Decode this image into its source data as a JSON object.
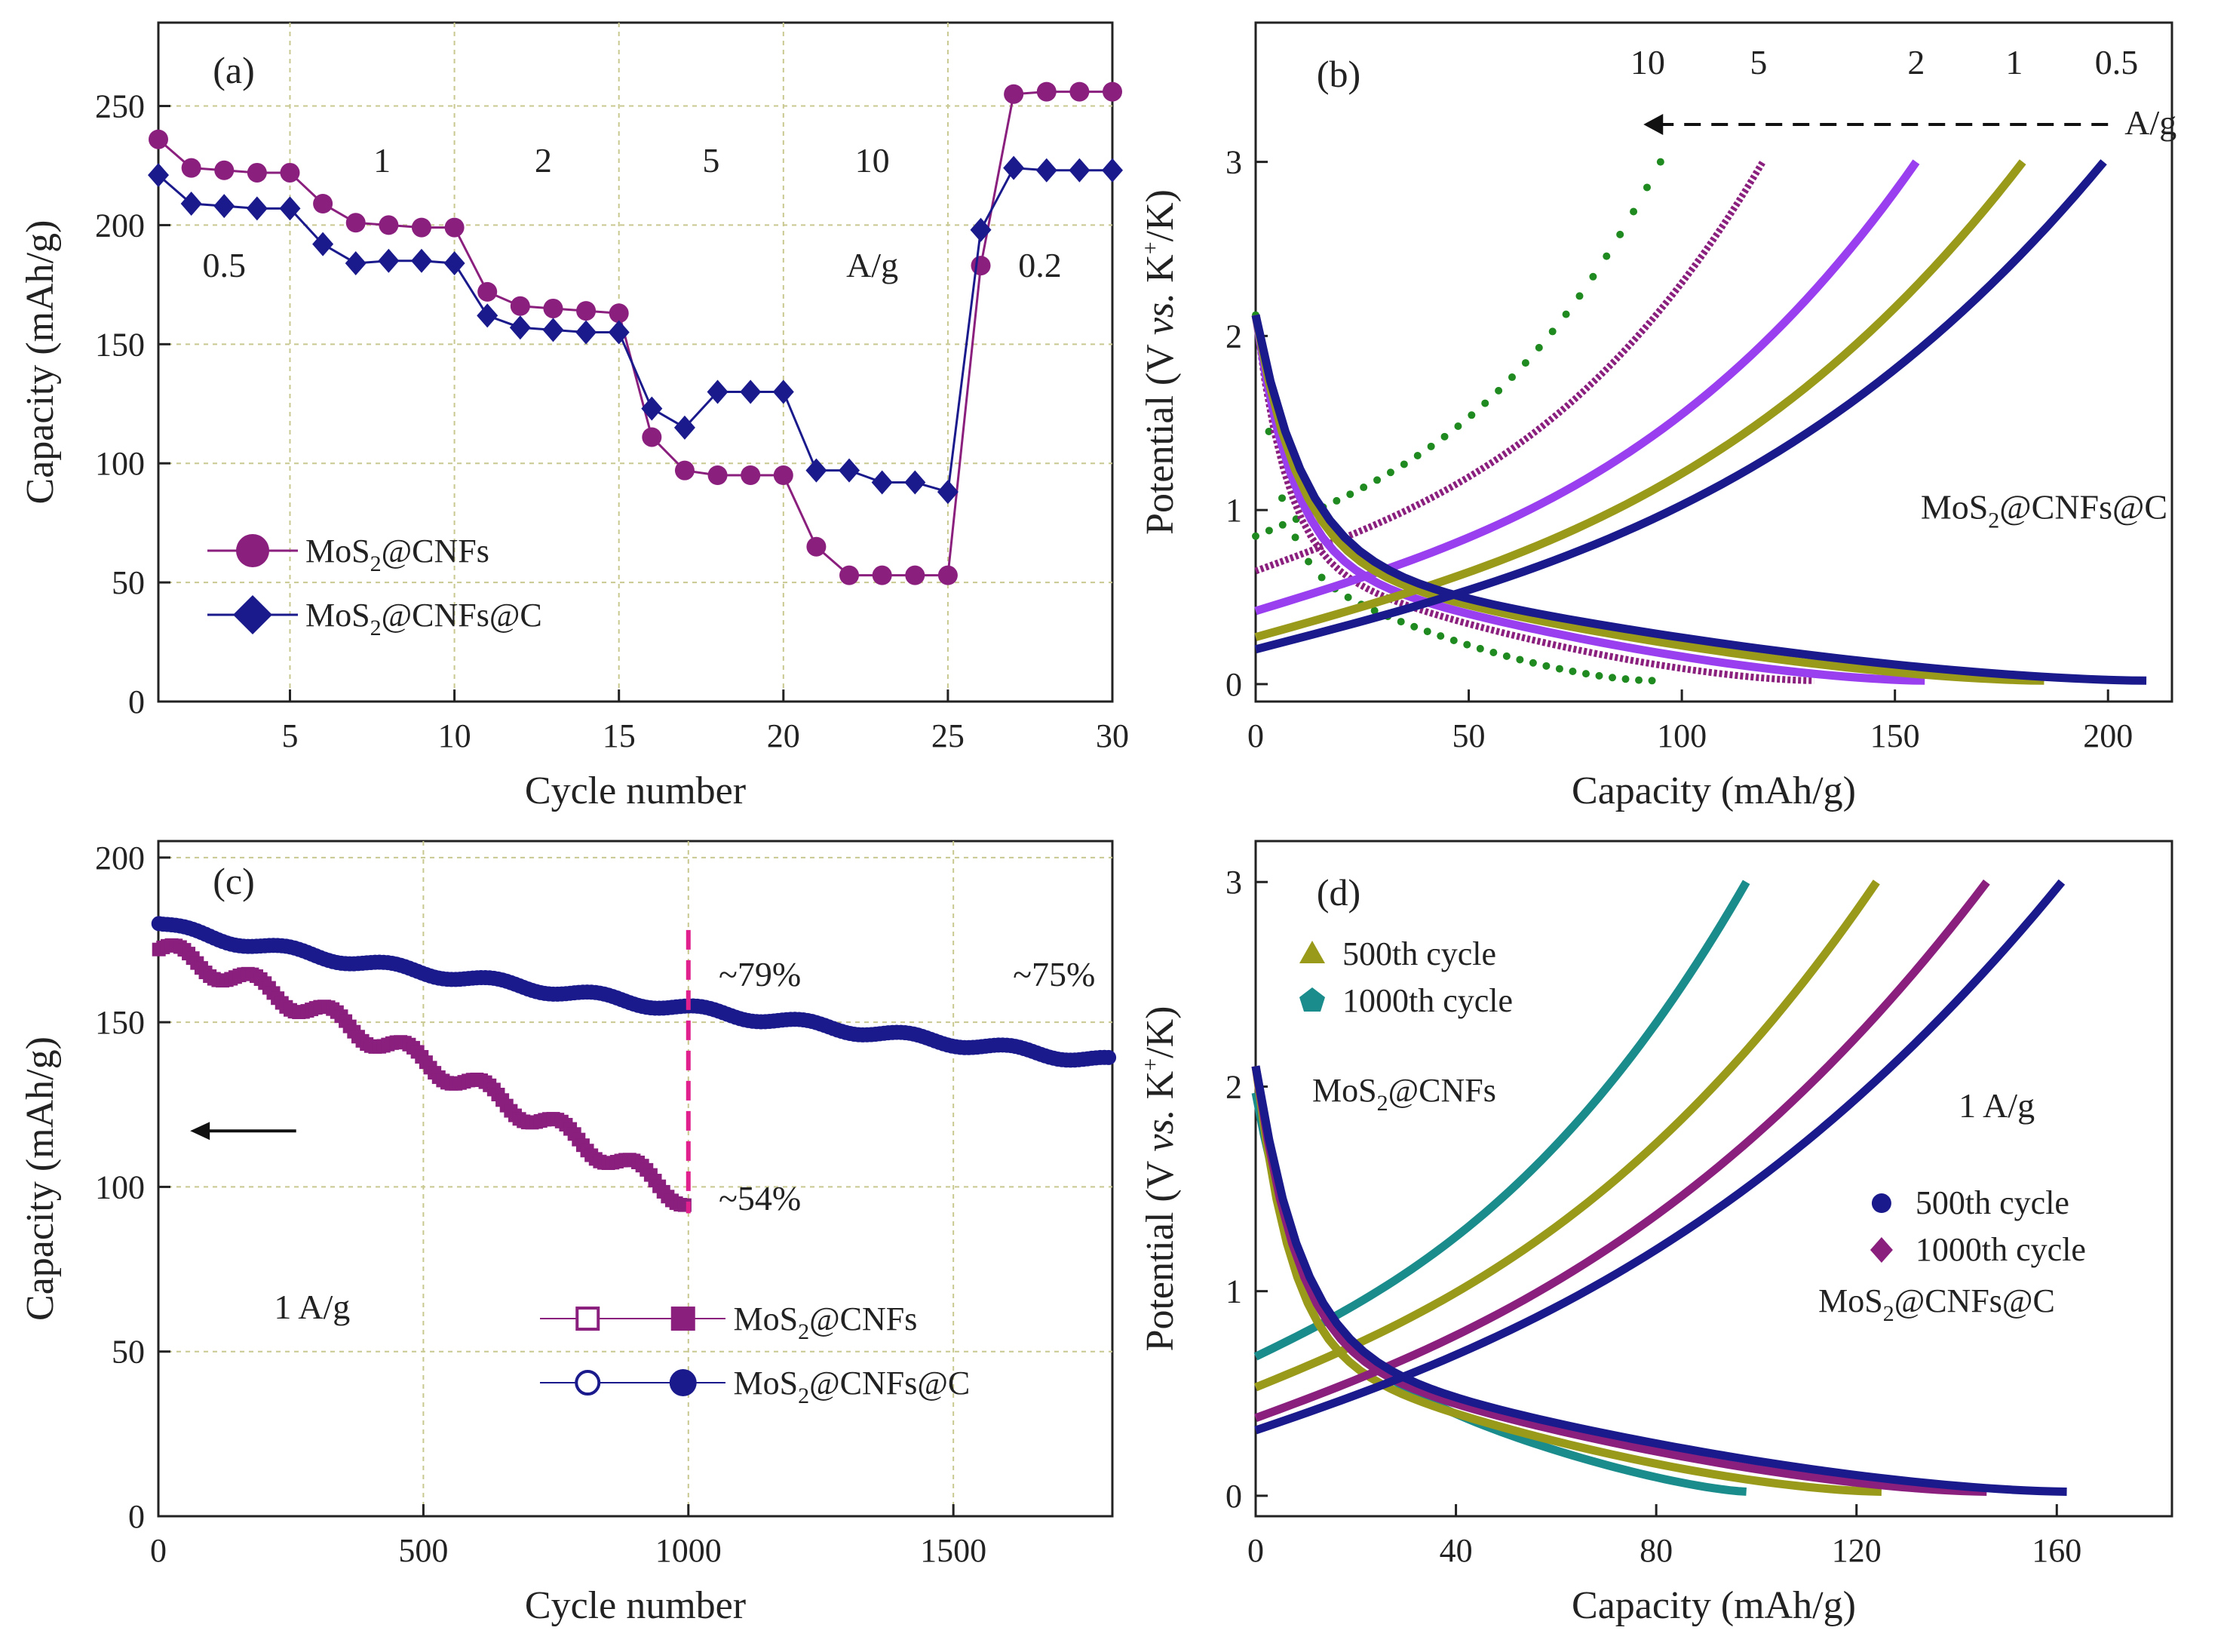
{
  "figure": {
    "colors": {
      "purple": "#8a1f7e",
      "navy": "#1a1a8c",
      "olive": "#9a9a1a",
      "violet": "#9a3ff0",
      "green": "#1f8a1f",
      "teal": "#1a8c8c",
      "pink": "#e0208c",
      "grid": "#c8c890"
    }
  },
  "chart_data": [
    {
      "panel": "(a)",
      "type": "line",
      "xlabel": "Cycle number",
      "ylabel": "Capacity (mAh/g)",
      "xlim": [
        1,
        30
      ],
      "ylim": [
        0,
        285
      ],
      "xticks": [
        "5",
        "10",
        "15",
        "20",
        "25",
        "30"
      ],
      "yticks": [
        "0",
        "50",
        "100",
        "150",
        "200",
        "250"
      ],
      "x": [
        1,
        2,
        3,
        4,
        5,
        6,
        7,
        8,
        9,
        10,
        11,
        12,
        13,
        14,
        15,
        16,
        17,
        18,
        19,
        20,
        21,
        22,
        23,
        24,
        25,
        26,
        27,
        28,
        29,
        30
      ],
      "series": [
        {
          "name": "MoS2@CNFs",
          "legend_main": "MoS",
          "legend_sub": "2",
          "legend_rest": "@CNFs",
          "color_key": "purple",
          "marker": "circle",
          "values": [
            236,
            224,
            223,
            222,
            222,
            209,
            201,
            200,
            199,
            199,
            172,
            166,
            165,
            164,
            163,
            111,
            97,
            95,
            95,
            95,
            65,
            53,
            53,
            53,
            53,
            183,
            255,
            256,
            256,
            256
          ]
        },
        {
          "name": "MoS2@CNFs@C",
          "legend_main": "MoS",
          "legend_sub": "2",
          "legend_rest": "@CNFs@C",
          "color_key": "navy",
          "marker": "diamond",
          "values": [
            221,
            209,
            208,
            207,
            207,
            192,
            184,
            185,
            185,
            184,
            162,
            157,
            156,
            155,
            155,
            123,
            115,
            130,
            130,
            130,
            97,
            97,
            92,
            92,
            88,
            198,
            224,
            223,
            223,
            223
          ]
        }
      ],
      "rate_labels": [
        {
          "text": "0.5",
          "x": 3,
          "y": 183
        },
        {
          "text": "1",
          "x": 7.8,
          "y": 227
        },
        {
          "text": "2",
          "x": 12.7,
          "y": 227
        },
        {
          "text": "5",
          "x": 17.8,
          "y": 227
        },
        {
          "text": "10",
          "x": 22.7,
          "y": 227
        },
        {
          "text": "A/g",
          "x": 22.7,
          "y": 183
        },
        {
          "text": "0.2",
          "x": 27.8,
          "y": 183
        }
      ]
    },
    {
      "panel": "(b)",
      "type": "line",
      "xlabel": "Capacity (mAh/g)",
      "ylabel_pre": "Potential (V ",
      "ylabel_vs": "vs.",
      "ylabel_mid": " K",
      "ylabel_sup": "+",
      "ylabel_post": "/K)",
      "xlim": [
        0,
        215
      ],
      "ylim": [
        -0.1,
        3.8
      ],
      "xticks": [
        "0",
        "50",
        "100",
        "150",
        "200"
      ],
      "yticks": [
        "0",
        "1",
        "2",
        "3"
      ],
      "rates": [
        "10",
        "5",
        "2",
        "1",
        "0.5"
      ],
      "rate_unit": "A/g",
      "sample_pre": "MoS",
      "sample_sub": "2",
      "sample_post": "@CNFs@C",
      "series": [
        {
          "rate": "10",
          "color_key": "green",
          "style": "dotted",
          "discharge_end": 93,
          "charge_end": 95
        },
        {
          "rate": "5",
          "color_key": "purple",
          "style": "dense",
          "discharge_end": 131,
          "charge_end": 119
        },
        {
          "rate": "2",
          "color_key": "violet",
          "style": "solid",
          "discharge_end": 157,
          "charge_end": 155
        },
        {
          "rate": "1",
          "color_key": "olive",
          "style": "solid",
          "discharge_end": 185,
          "charge_end": 180
        },
        {
          "rate": "0.5",
          "color_key": "navy",
          "style": "solid",
          "discharge_end": 209,
          "charge_end": 199
        }
      ]
    },
    {
      "panel": "(c)",
      "type": "scatter",
      "xlabel": "Cycle number",
      "ylabel": "Capacity (mAh/g)",
      "xlim": [
        0,
        1800
      ],
      "ylim": [
        0,
        205
      ],
      "xticks": [
        "0",
        "500",
        "1000",
        "1500"
      ],
      "yticks": [
        "0",
        "50",
        "100",
        "150",
        "200"
      ],
      "series": [
        {
          "name": "MoS2@CNFs",
          "legend_main": "MoS",
          "legend_sub": "2",
          "legend_rest": "@CNFs",
          "color_key": "purple",
          "marker": "square",
          "x_range": [
            1,
            1000
          ],
          "start": 172,
          "end": 96
        },
        {
          "name": "MoS2@CNFs@C",
          "legend_main": "MoS",
          "legend_sub": "2",
          "legend_rest": "@CNFs@C",
          "color_key": "navy",
          "marker": "circle",
          "x_range": [
            1,
            1800
          ],
          "start": 180,
          "end": 138
        }
      ],
      "annotations": [
        "~79%",
        "~54%",
        "~75%",
        "1 A/g"
      ],
      "marker_line_x": 1000
    },
    {
      "panel": "(d)",
      "type": "line",
      "xlabel": "Capacity (mAh/g)",
      "ylabel_pre": "Potential (V ",
      "ylabel_vs": "vs.",
      "ylabel_mid": " K",
      "ylabel_sup": "+",
      "ylabel_post": "/K)",
      "xlim": [
        0,
        183
      ],
      "ylim": [
        -0.1,
        3.2
      ],
      "xticks": [
        "0",
        "40",
        "80",
        "120",
        "160"
      ],
      "yticks": [
        "0",
        "1",
        "2",
        "3"
      ],
      "legend_cnfs": [
        "500th cycle",
        "1000th cycle"
      ],
      "legend_c": [
        "500th cycle",
        "1000th cycle"
      ],
      "label_cnfs_pre": "MoS",
      "label_cnfs_sub": "2",
      "label_cnfs_post": "@CNFs",
      "label_c_pre": "MoS",
      "label_c_sub": "2",
      "label_c_post": "@CNFs@C",
      "rate": "1 A/g",
      "series": [
        {
          "name": "MoS2@CNFs 1000th cycle",
          "color_key": "teal",
          "discharge_end": 98,
          "charge_end": 98
        },
        {
          "name": "MoS2@CNFs 500th cycle",
          "color_key": "olive",
          "discharge_end": 125,
          "charge_end": 124
        },
        {
          "name": "MoS2@CNFs@C 1000th cycle",
          "color_key": "purple",
          "discharge_end": 146,
          "charge_end": 146
        },
        {
          "name": "MoS2@CNFs@C 500th cycle",
          "color_key": "navy",
          "discharge_end": 162,
          "charge_end": 161
        }
      ]
    }
  ]
}
